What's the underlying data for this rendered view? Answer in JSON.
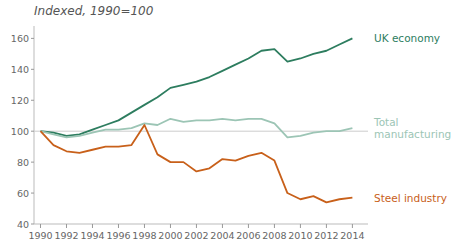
{
  "chart_data": {
    "type": "line",
    "title": "Indexed, 1990=100",
    "x": [
      1990,
      1991,
      1992,
      1993,
      1994,
      1995,
      1996,
      1997,
      1998,
      1999,
      2000,
      2001,
      2002,
      2003,
      2004,
      2005,
      2006,
      2007,
      2008,
      2009,
      2010,
      2011,
      2012,
      2013,
      2014
    ],
    "series": [
      {
        "name": "UK economy",
        "color": "#2d7d5f",
        "values": [
          100,
          99,
          97,
          98,
          101,
          104,
          107,
          112,
          117,
          122,
          128,
          130,
          132,
          135,
          139,
          143,
          147,
          152,
          153,
          145,
          147,
          150,
          152,
          156,
          160
        ]
      },
      {
        "name": "Total\nmanufacturing",
        "color": "#9cc5b5",
        "values": [
          100,
          98,
          96,
          97,
          99,
          101,
          101,
          102,
          105,
          104,
          108,
          106,
          107,
          107,
          108,
          107,
          108,
          108,
          105,
          96,
          97,
          99,
          100,
          100,
          102
        ]
      },
      {
        "name": "Steel industry",
        "color": "#c8601a",
        "values": [
          100,
          91,
          87,
          86,
          88,
          90,
          90,
          91,
          104,
          85,
          80,
          80,
          74,
          76,
          82,
          81,
          84,
          86,
          81,
          60,
          56,
          58,
          54,
          56,
          57
        ]
      }
    ],
    "reference_line": 100,
    "xlim": [
      1989.5,
      2015.2
    ],
    "xticks": [
      1990,
      1992,
      1994,
      1996,
      1998,
      2000,
      2002,
      2004,
      2006,
      2008,
      2010,
      2012,
      2014
    ],
    "ylim": [
      40,
      168
    ],
    "yticks": [
      40,
      60,
      80,
      100,
      120,
      140,
      160
    ],
    "grid": false
  }
}
